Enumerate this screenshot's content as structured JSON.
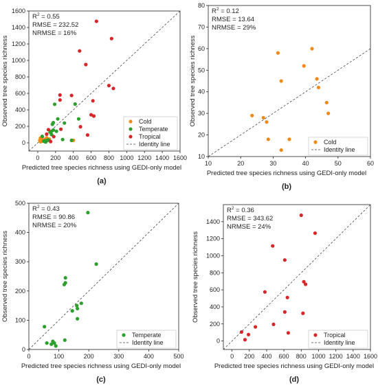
{
  "colors": {
    "cold": "#f28a1a",
    "temperate": "#2ca02c",
    "tropical": "#d62728",
    "identity": "#444444"
  },
  "chart_data": [
    {
      "type": "scatter",
      "panel_label": "(a)",
      "xlabel": "Predicted tree species richness using GEDI-only model",
      "ylabel": "Observed tree species richness",
      "xlim": [
        -100,
        1600
      ],
      "ylim": [
        -100,
        1600
      ],
      "xticks": [
        "0",
        "200",
        "400",
        "600",
        "800",
        "1000",
        "1200",
        "1400",
        "1600"
      ],
      "yticks": [
        "0",
        "200",
        "400",
        "600",
        "800",
        "1000",
        "1200",
        "1400",
        "1600"
      ],
      "stats": {
        "r2_prefix": "R",
        "r2_sup": "2",
        "r2_value": " = 0.55",
        "rmse": "RMSE = 232.52",
        "nrmse": "NRMSE = 16%"
      },
      "legend_position": "bottom-right",
      "legend": [
        "Cold",
        "Temperate",
        "Tropical",
        "Identity line"
      ],
      "series": [
        {
          "name": "Cold",
          "color": "cold",
          "points": [
            [
              23,
              29
            ],
            [
              27,
              28
            ],
            [
              28,
              26
            ],
            [
              29,
              18
            ],
            [
              30,
              58
            ],
            [
              33,
              45
            ],
            [
              35,
              18
            ],
            [
              38,
              52
            ],
            [
              42,
              60
            ],
            [
              44,
              46
            ],
            [
              45,
              42
            ],
            [
              47,
              35
            ],
            [
              48,
              30
            ],
            [
              32,
              13
            ],
            [
              100,
              60
            ],
            [
              130,
              45
            ],
            [
              80,
              40
            ],
            [
              60,
              22
            ],
            [
              400,
              30
            ]
          ]
        },
        {
          "name": "Temperate",
          "color": "temperate",
          "points": [
            [
              50,
              78
            ],
            [
              68,
              20
            ],
            [
              75,
              22
            ],
            [
              80,
              15
            ],
            [
              85,
              25
            ],
            [
              90,
              10
            ],
            [
              110,
              30
            ],
            [
              120,
              35
            ],
            [
              140,
              128
            ],
            [
              155,
              140
            ],
            [
              175,
              155
            ],
            [
              190,
              468
            ],
            [
              225,
              290
            ],
            [
              165,
              225
            ],
            [
              175,
              245
            ],
            [
              155,
              100
            ],
            [
              210,
              140
            ],
            [
              280,
              40
            ],
            [
              300,
              240
            ],
            [
              420,
              470
            ],
            [
              460,
              290
            ],
            [
              380,
              30
            ]
          ]
        },
        {
          "name": "Tropical",
          "color": "tropical",
          "points": [
            [
              100,
              105
            ],
            [
              145,
              15
            ],
            [
              180,
              75
            ],
            [
              260,
              165
            ],
            [
              380,
              575
            ],
            [
              470,
              1115
            ],
            [
              540,
              950
            ],
            [
              560,
              95
            ],
            [
              600,
              340
            ],
            [
              620,
              510
            ],
            [
              660,
              1475
            ],
            [
              800,
              695
            ],
            [
              850,
              660
            ],
            [
              830,
              1265
            ],
            [
              630,
              325
            ],
            [
              480,
              195
            ],
            [
              250,
              520
            ],
            [
              250,
              580
            ],
            [
              120,
              160
            ]
          ]
        }
      ]
    },
    {
      "type": "scatter",
      "panel_label": "(b)",
      "xlabel": "Predicted tree species richness using GEDI-only model",
      "ylabel": "Observed tree species richness",
      "xlim": [
        10,
        60
      ],
      "ylim": [
        10,
        80
      ],
      "xticks": [
        "10",
        "20",
        "30",
        "40",
        "50",
        "60"
      ],
      "yticks": [
        "10",
        "20",
        "30",
        "40",
        "50",
        "60",
        "70",
        "80"
      ],
      "stats": {
        "r2_prefix": "R",
        "r2_sup": "2",
        "r2_value": " = 0.12",
        "rmse": "RMSE = 13.64",
        "nrmse": "NRMSE = 29%"
      },
      "legend_position": "bottom-right",
      "legend": [
        "Cold",
        "Identity line"
      ],
      "series": [
        {
          "name": "Cold",
          "color": "cold",
          "points": [
            [
              23.5,
              29
            ],
            [
              27,
              28
            ],
            [
              28,
              26
            ],
            [
              28.5,
              18
            ],
            [
              31.5,
              58
            ],
            [
              32.5,
              45
            ],
            [
              32.5,
              13
            ],
            [
              35,
              18
            ],
            [
              39.5,
              52
            ],
            [
              42,
              60
            ],
            [
              43.5,
              46
            ],
            [
              44,
              42
            ],
            [
              46.5,
              35
            ],
            [
              47,
              30
            ]
          ]
        }
      ]
    },
    {
      "type": "scatter",
      "panel_label": "(c)",
      "xlabel": "Predicted tree species richness using GEDI-only model",
      "ylabel": "Observed tree species richness",
      "xlim": [
        0,
        500
      ],
      "ylim": [
        0,
        500
      ],
      "xticks": [
        "0",
        "100",
        "200",
        "300",
        "400",
        "500"
      ],
      "yticks": [
        "0",
        "100",
        "200",
        "300",
        "400",
        "500"
      ],
      "stats": {
        "r2_prefix": "R",
        "r2_sup": "2",
        "r2_value": " = 0.43",
        "rmse": "RMSE = 90.86",
        "nrmse": "NRMSE = 20%"
      },
      "legend_position": "bottom-right",
      "legend": [
        "Temperate",
        "Identity line"
      ],
      "series": [
        {
          "name": "Temperate",
          "color": "temperate",
          "points": [
            [
              52,
              78
            ],
            [
              60,
              22
            ],
            [
              75,
              18
            ],
            [
              80,
              28
            ],
            [
              85,
              22
            ],
            [
              90,
              12
            ],
            [
              120,
              32
            ],
            [
              118,
              222
            ],
            [
              122,
              245
            ],
            [
              122,
              228
            ],
            [
              145,
              132
            ],
            [
              160,
              150
            ],
            [
              162,
              140
            ],
            [
              162,
              105
            ],
            [
              175,
              158
            ],
            [
              197,
              468
            ],
            [
              225,
              292
            ]
          ]
        }
      ]
    },
    {
      "type": "scatter",
      "panel_label": "(d)",
      "xlabel": "Predicted tree species richness using GEDI-only model",
      "ylabel": "Observed tree species richness",
      "xlim": [
        -100,
        1600
      ],
      "ylim": [
        -100,
        1600
      ],
      "xticks": [
        "0",
        "200",
        "400",
        "600",
        "800",
        "1000",
        "1200",
        "1400",
        "1600"
      ],
      "yticks": [
        "0",
        "200",
        "400",
        "600",
        "800",
        "1000",
        "1200",
        "1400"
      ],
      "stats": {
        "r2_prefix": "R",
        "r2_sup": "2",
        "r2_value": " = 0.36",
        "rmse": "RMSE = 343.62",
        "nrmse": "NRMSE = 24%"
      },
      "legend_position": "bottom-right",
      "legend": [
        "Tropical",
        "Identity line"
      ],
      "series": [
        {
          "name": "Tropical",
          "color": "tropical",
          "points": [
            [
              110,
              105
            ],
            [
              150,
              15
            ],
            [
              190,
              75
            ],
            [
              270,
              165
            ],
            [
              380,
              575
            ],
            [
              470,
              1115
            ],
            [
              480,
              195
            ],
            [
              610,
              340
            ],
            [
              610,
              950
            ],
            [
              640,
              510
            ],
            [
              650,
              95
            ],
            [
              800,
              1475
            ],
            [
              820,
              325
            ],
            [
              830,
              695
            ],
            [
              850,
              665
            ],
            [
              960,
              1265
            ]
          ]
        }
      ]
    }
  ]
}
